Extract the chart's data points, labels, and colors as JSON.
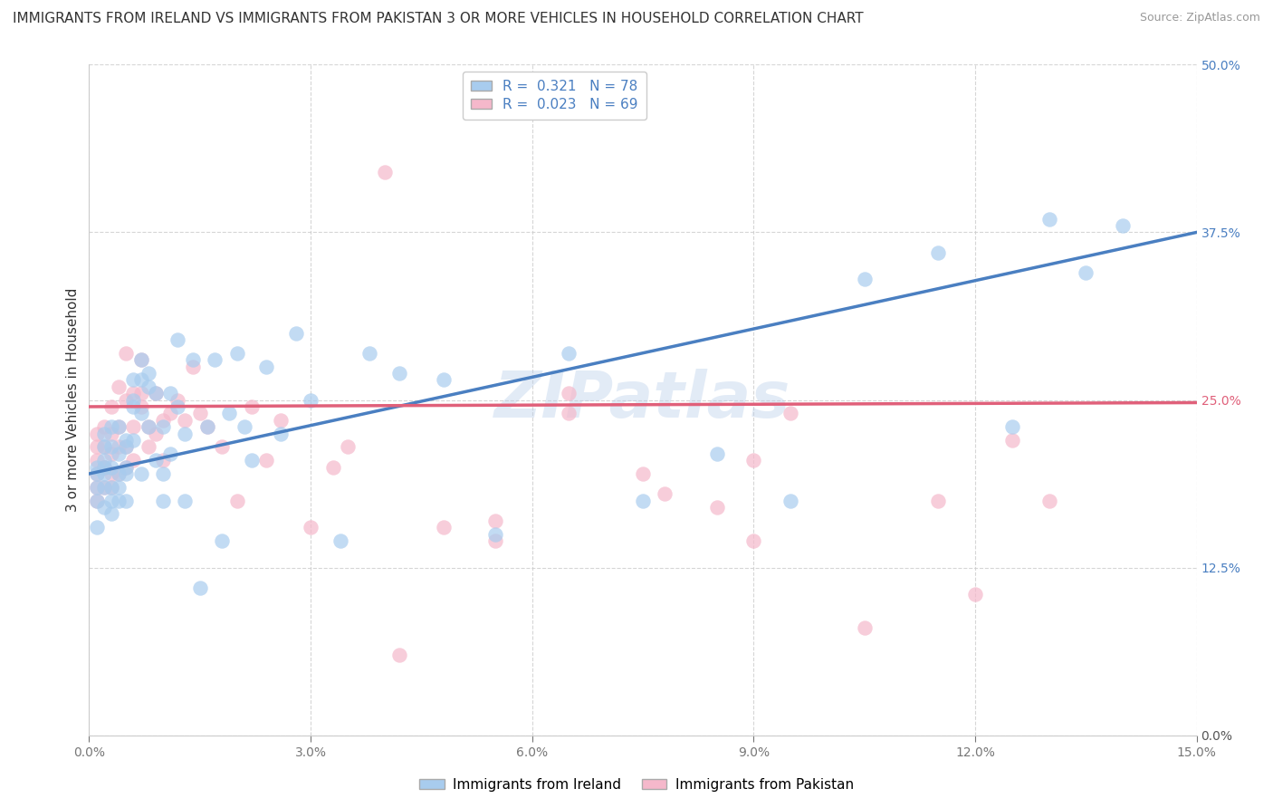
{
  "title": "IMMIGRANTS FROM IRELAND VS IMMIGRANTS FROM PAKISTAN 3 OR MORE VEHICLES IN HOUSEHOLD CORRELATION CHART",
  "source": "Source: ZipAtlas.com",
  "ylabel": "3 or more Vehicles in Household",
  "xlim": [
    0.0,
    0.15
  ],
  "ylim": [
    0.0,
    0.5
  ],
  "xticks": [
    0.0,
    0.03,
    0.06,
    0.09,
    0.12,
    0.15
  ],
  "xticklabels": [
    "0.0%",
    "3.0%",
    "6.0%",
    "9.0%",
    "12.0%",
    "15.0%"
  ],
  "yticks": [
    0.0,
    0.125,
    0.25,
    0.375,
    0.5
  ],
  "yticklabels": [
    "0.0%",
    "12.5%",
    "25.0%",
    "37.5%",
    "50.0%"
  ],
  "ireland_color": "#A8CCEE",
  "pakistan_color": "#F5B8CB",
  "ireland_line_color": "#4A7FC1",
  "pakistan_line_color": "#E0607A",
  "ireland_R": 0.321,
  "ireland_N": 78,
  "pakistan_R": 0.023,
  "pakistan_N": 69,
  "ireland_x": [
    0.001,
    0.001,
    0.001,
    0.001,
    0.001,
    0.002,
    0.002,
    0.002,
    0.002,
    0.002,
    0.002,
    0.002,
    0.003,
    0.003,
    0.003,
    0.003,
    0.003,
    0.003,
    0.004,
    0.004,
    0.004,
    0.004,
    0.004,
    0.005,
    0.005,
    0.005,
    0.005,
    0.005,
    0.006,
    0.006,
    0.006,
    0.006,
    0.007,
    0.007,
    0.007,
    0.007,
    0.008,
    0.008,
    0.008,
    0.009,
    0.009,
    0.01,
    0.01,
    0.01,
    0.011,
    0.011,
    0.012,
    0.012,
    0.013,
    0.013,
    0.014,
    0.015,
    0.016,
    0.017,
    0.018,
    0.019,
    0.02,
    0.021,
    0.022,
    0.024,
    0.026,
    0.028,
    0.03,
    0.034,
    0.038,
    0.042,
    0.048,
    0.055,
    0.065,
    0.075,
    0.085,
    0.095,
    0.105,
    0.115,
    0.125,
    0.13,
    0.135,
    0.14
  ],
  "ireland_y": [
    0.195,
    0.185,
    0.2,
    0.175,
    0.155,
    0.2,
    0.205,
    0.215,
    0.185,
    0.225,
    0.195,
    0.17,
    0.2,
    0.215,
    0.23,
    0.185,
    0.175,
    0.165,
    0.21,
    0.195,
    0.23,
    0.175,
    0.185,
    0.22,
    0.195,
    0.215,
    0.175,
    0.2,
    0.245,
    0.265,
    0.25,
    0.22,
    0.28,
    0.24,
    0.265,
    0.195,
    0.23,
    0.27,
    0.26,
    0.255,
    0.205,
    0.195,
    0.23,
    0.175,
    0.255,
    0.21,
    0.245,
    0.295,
    0.225,
    0.175,
    0.28,
    0.11,
    0.23,
    0.28,
    0.145,
    0.24,
    0.285,
    0.23,
    0.205,
    0.275,
    0.225,
    0.3,
    0.25,
    0.145,
    0.285,
    0.27,
    0.265,
    0.15,
    0.285,
    0.175,
    0.21,
    0.175,
    0.34,
    0.36,
    0.23,
    0.385,
    0.345,
    0.38
  ],
  "pakistan_x": [
    0.001,
    0.001,
    0.001,
    0.001,
    0.001,
    0.001,
    0.002,
    0.002,
    0.002,
    0.002,
    0.002,
    0.002,
    0.003,
    0.003,
    0.003,
    0.003,
    0.003,
    0.004,
    0.004,
    0.004,
    0.004,
    0.005,
    0.005,
    0.005,
    0.005,
    0.006,
    0.006,
    0.006,
    0.007,
    0.007,
    0.007,
    0.008,
    0.008,
    0.009,
    0.009,
    0.01,
    0.01,
    0.011,
    0.012,
    0.013,
    0.014,
    0.015,
    0.016,
    0.018,
    0.02,
    0.022,
    0.024,
    0.026,
    0.03,
    0.035,
    0.04,
    0.048,
    0.055,
    0.065,
    0.075,
    0.085,
    0.095,
    0.105,
    0.115,
    0.12,
    0.125,
    0.065,
    0.078,
    0.09,
    0.042,
    0.033,
    0.055,
    0.09,
    0.13
  ],
  "pakistan_y": [
    0.205,
    0.195,
    0.215,
    0.185,
    0.225,
    0.175,
    0.2,
    0.215,
    0.2,
    0.23,
    0.185,
    0.2,
    0.225,
    0.245,
    0.21,
    0.195,
    0.185,
    0.23,
    0.195,
    0.26,
    0.215,
    0.285,
    0.25,
    0.2,
    0.215,
    0.23,
    0.255,
    0.205,
    0.255,
    0.28,
    0.245,
    0.23,
    0.215,
    0.255,
    0.225,
    0.205,
    0.235,
    0.24,
    0.25,
    0.235,
    0.275,
    0.24,
    0.23,
    0.215,
    0.175,
    0.245,
    0.205,
    0.235,
    0.155,
    0.215,
    0.42,
    0.155,
    0.145,
    0.24,
    0.195,
    0.17,
    0.24,
    0.08,
    0.175,
    0.105,
    0.22,
    0.255,
    0.18,
    0.145,
    0.06,
    0.2,
    0.16,
    0.205,
    0.175
  ],
  "ireland_line_y0": 0.195,
  "ireland_line_y1": 0.375,
  "pakistan_line_y0": 0.245,
  "pakistan_line_y1": 0.248,
  "watermark_text": "ZIPatlas",
  "background_color": "#FFFFFF",
  "grid_color": "#CCCCCC",
  "title_fontsize": 11,
  "axis_label_fontsize": 11,
  "tick_fontsize": 10,
  "legend_fontsize": 11,
  "right_ytick_colors": [
    "#555555",
    "#4A7FC1",
    "#E0607A",
    "#4A7FC1",
    "#4A7FC1"
  ]
}
